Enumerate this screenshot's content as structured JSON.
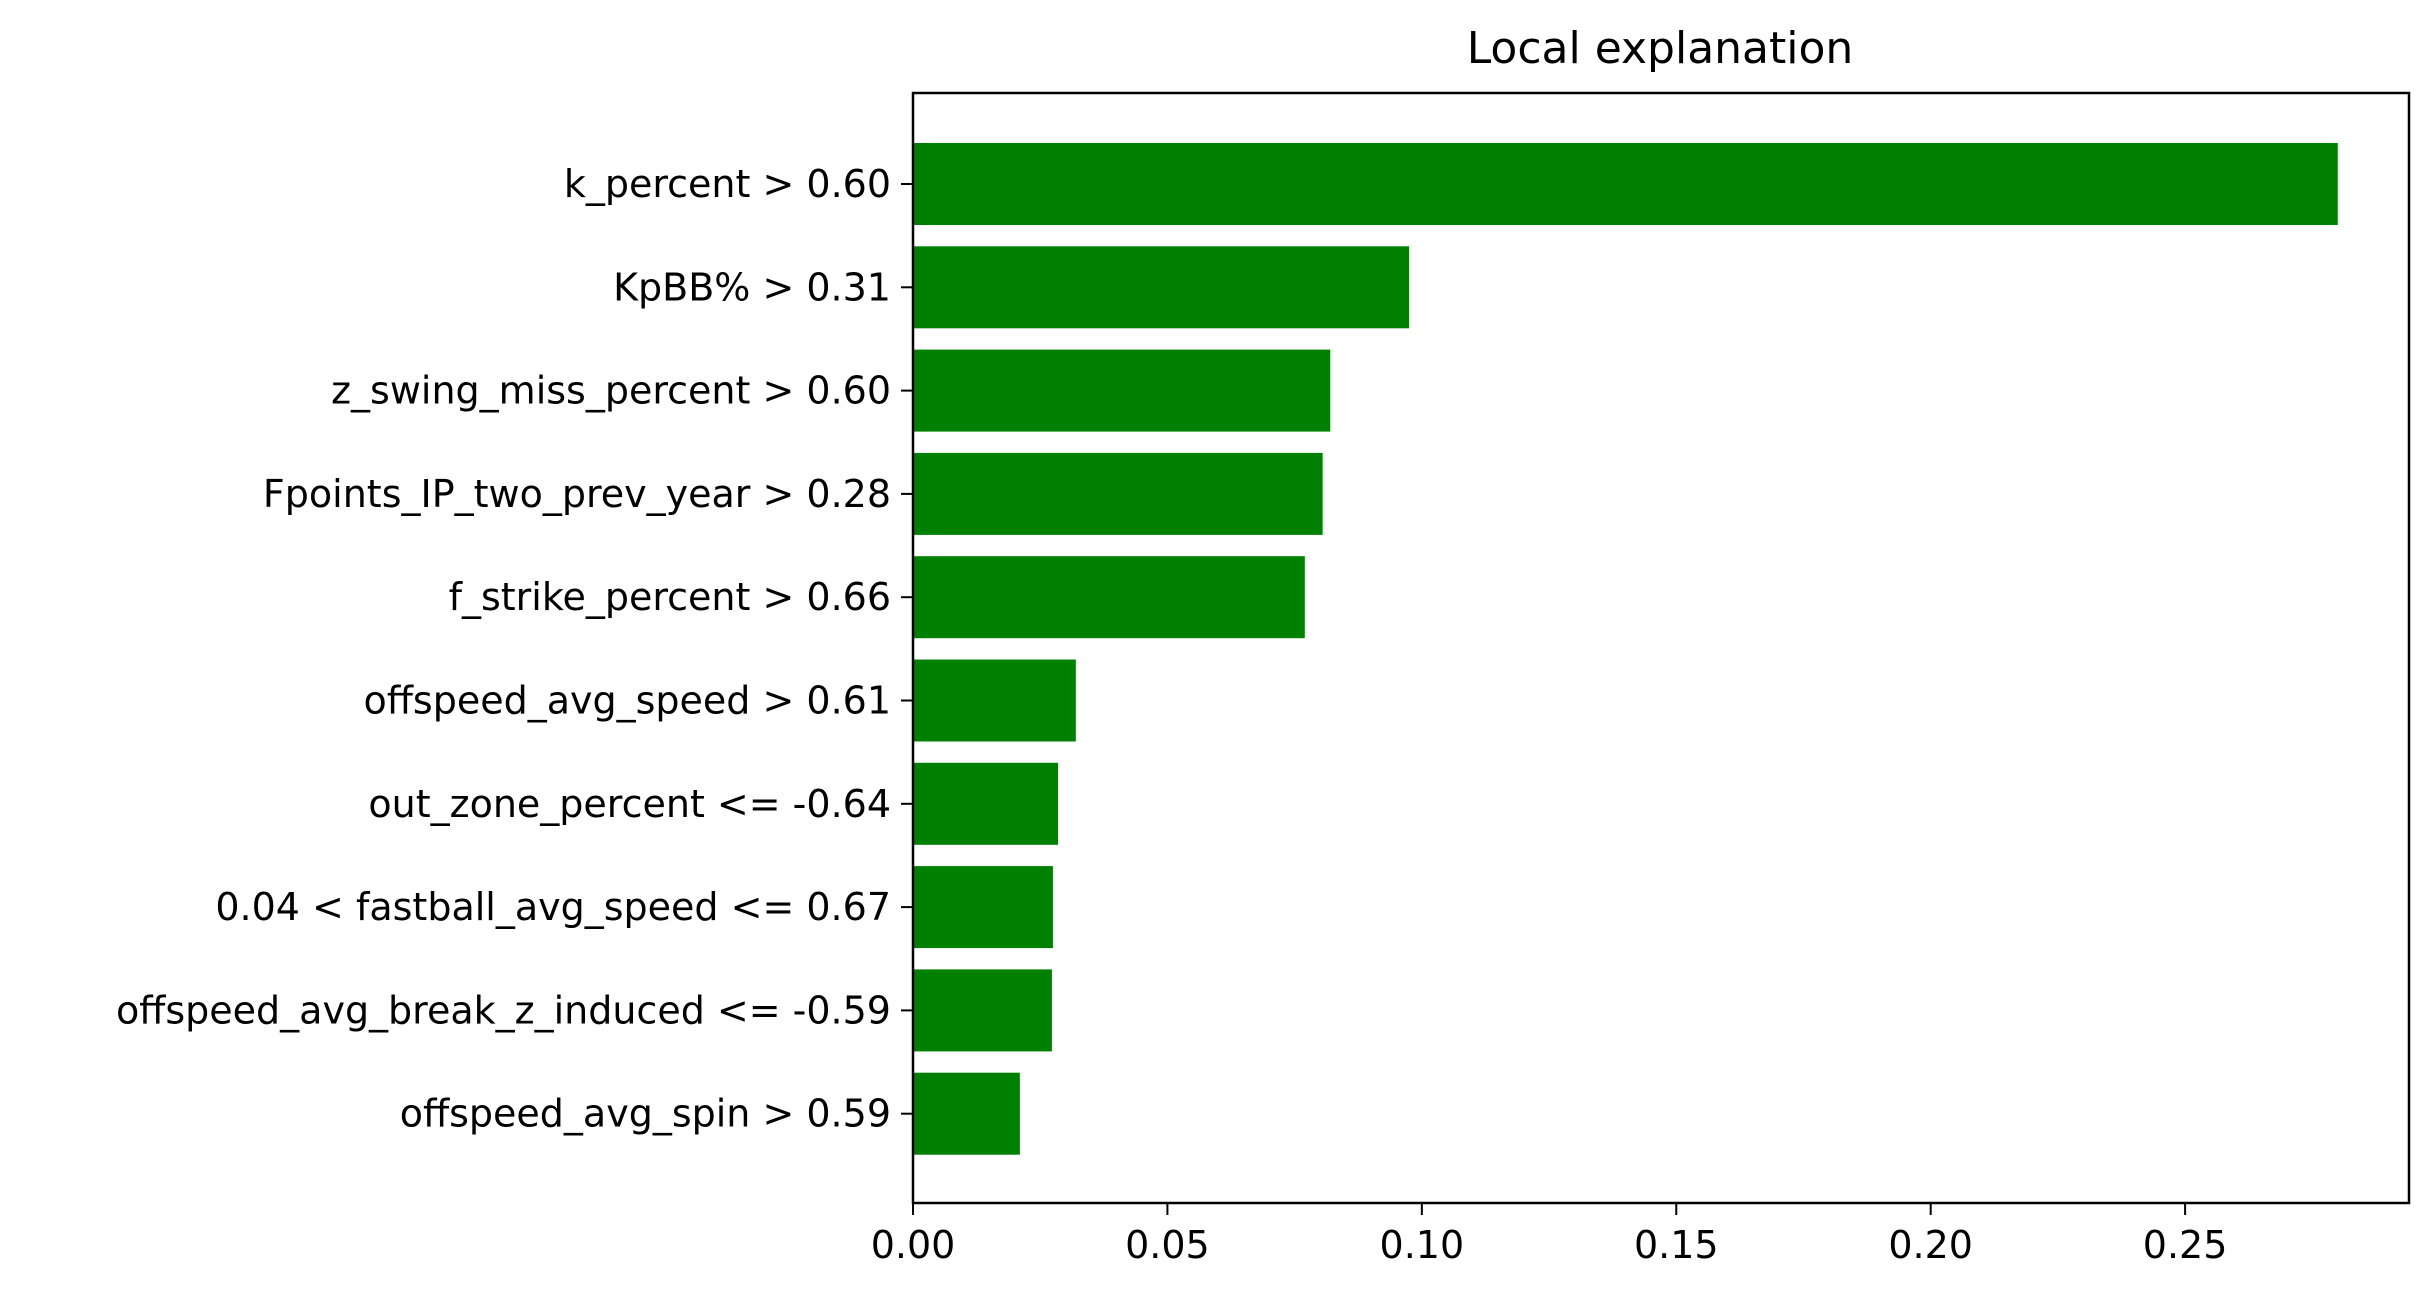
{
  "chart_data": {
    "type": "bar",
    "orientation": "horizontal",
    "title": "Local explanation",
    "xlabel": "",
    "ylabel": "",
    "bar_color": "#008000",
    "grid": false,
    "xlim": [
      0,
      0.294
    ],
    "x_ticks": [
      0.0,
      0.05,
      0.1,
      0.15,
      0.2,
      0.25
    ],
    "x_tick_labels": [
      "0.00",
      "0.05",
      "0.10",
      "0.15",
      "0.20",
      "0.25"
    ],
    "categories": [
      "k_percent > 0.60",
      "KpBB% > 0.31",
      "z_swing_miss_percent > 0.60",
      "Fpoints_IP_two_prev_year > 0.28",
      "f_strike_percent > 0.66",
      "offspeed_avg_speed > 0.61",
      "out_zone_percent <= -0.64",
      "0.04 < fastball_avg_speed <= 0.67",
      "offspeed_avg_break_z_induced <= -0.59",
      "offspeed_avg_spin > 0.59"
    ],
    "values": [
      0.28,
      0.0975,
      0.082,
      0.0805,
      0.077,
      0.032,
      0.0285,
      0.0275,
      0.0273,
      0.021
    ]
  }
}
